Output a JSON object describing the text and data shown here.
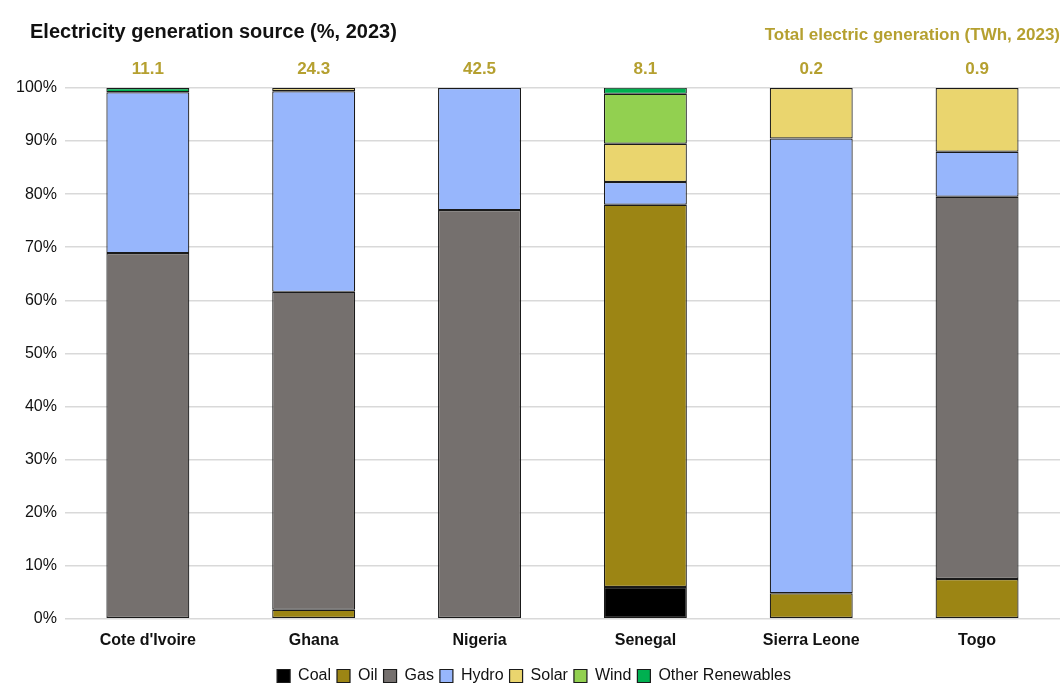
{
  "chart_data": {
    "type": "bar",
    "stacked": true,
    "title": "Electricity generation source (%, 2023)",
    "categories": [
      "Cote d'Ivoire",
      "Ghana",
      "Nigeria",
      "Senegal",
      "Sierra Leone",
      "Togo"
    ],
    "series": [
      {
        "name": "Coal",
        "color": "#000000",
        "values": [
          0,
          0,
          0,
          6.0,
          0,
          0
        ]
      },
      {
        "name": "Oil",
        "color": "#9c8514",
        "values": [
          0,
          1.7,
          0,
          72.0,
          4.8,
          7.5
        ]
      },
      {
        "name": "Gas",
        "color": "#75706e",
        "values": [
          68.9,
          59.9,
          77.0,
          0,
          0,
          72.0
        ]
      },
      {
        "name": "Hydro",
        "color": "#97b6fc",
        "values": [
          30.3,
          37.8,
          23.0,
          4.3,
          85.7,
          8.5
        ]
      },
      {
        "name": "Solar",
        "color": "#ead56e",
        "values": [
          0,
          0.6,
          0,
          7.2,
          9.5,
          12.0
        ]
      },
      {
        "name": "Wind",
        "color": "#92d050",
        "values": [
          0,
          0,
          0,
          9.4,
          0,
          0
        ]
      },
      {
        "name": "Other Renewables",
        "color": "#00b050",
        "values": [
          0.8,
          0,
          0,
          1.2,
          0,
          0
        ]
      }
    ],
    "ylim": [
      0,
      100
    ],
    "yticks": [
      {
        "value": 0,
        "label": "0%"
      },
      {
        "value": 10,
        "label": "10%"
      },
      {
        "value": 20,
        "label": "20%"
      },
      {
        "value": 30,
        "label": "30%"
      },
      {
        "value": 40,
        "label": "40%"
      },
      {
        "value": 50,
        "label": "50%"
      },
      {
        "value": 60,
        "label": "60%"
      },
      {
        "value": 70,
        "label": "70%"
      },
      {
        "value": 80,
        "label": "80%"
      },
      {
        "value": 90,
        "label": "90%"
      },
      {
        "value": 100,
        "label": "100%"
      }
    ],
    "grid": "y",
    "legend": "bottom",
    "annotations": [
      "Total electric generation (TWh, 2023)",
      "11.1",
      "24.3",
      "42.5",
      "8.1",
      "0.2",
      "0.9"
    ]
  }
}
